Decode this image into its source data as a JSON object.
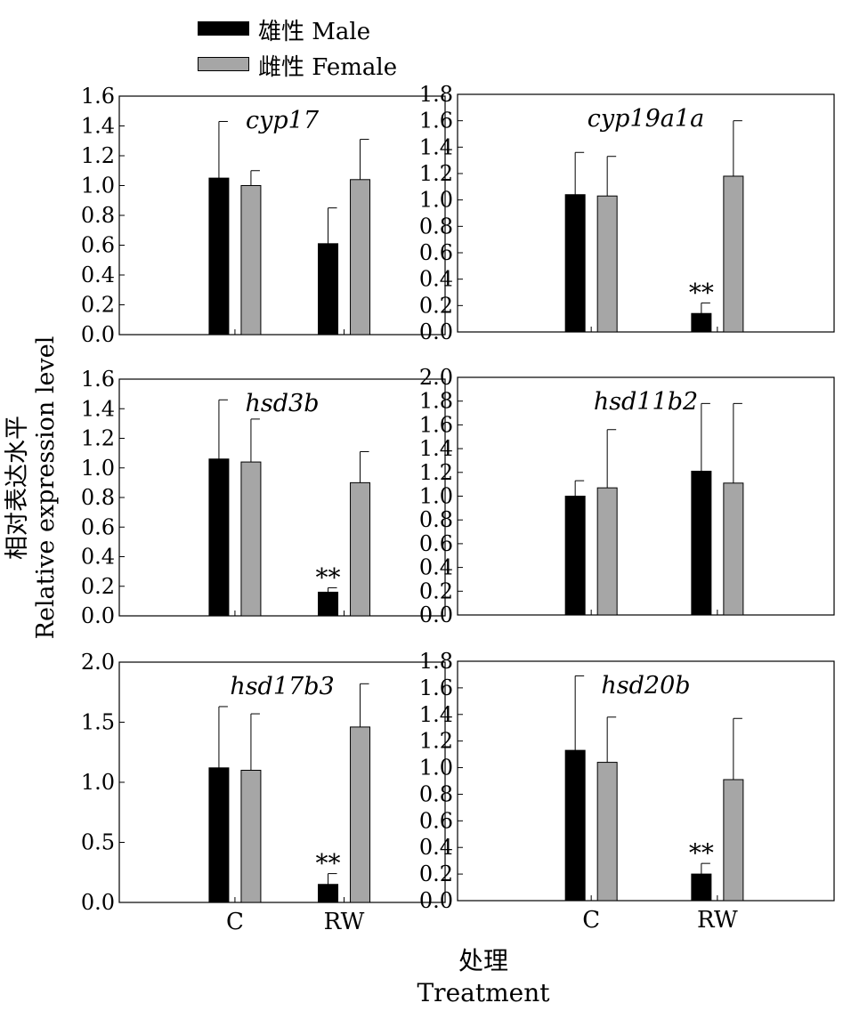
{
  "legend": [
    {
      "label": "雄性 Male",
      "color": "#000000"
    },
    {
      "label": "雌性 Female",
      "color": "#a6a6a6"
    }
  ],
  "y_axis_label": {
    "zh": "相对表达水平",
    "en": "Relative expression level"
  },
  "x_axis_label": {
    "zh": "处理",
    "en": "Treatment"
  },
  "chart_data": [
    {
      "type": "bar",
      "title": "cyp17",
      "categories": [
        "C",
        "RW"
      ],
      "ylim": [
        0,
        1.6
      ],
      "yticks": [
        "0.0",
        "0.2",
        "0.4",
        "0.6",
        "0.8",
        "1.0",
        "1.2",
        "1.4",
        "1.6"
      ],
      "series": [
        {
          "name": "雄性 Male",
          "values": [
            1.05,
            0.61
          ],
          "errors": [
            0.38,
            0.24
          ]
        },
        {
          "name": "雌性 Female",
          "values": [
            1.0,
            1.04
          ],
          "errors": [
            0.1,
            0.27
          ]
        }
      ],
      "annotations": []
    },
    {
      "type": "bar",
      "title": "cyp19a1a",
      "categories": [
        "C",
        "RW"
      ],
      "ylim": [
        0,
        1.8
      ],
      "yticks": [
        "0.0",
        "0.2",
        "0.4",
        "0.6",
        "0.8",
        "1.0",
        "1.2",
        "1.4",
        "1.6",
        "1.8"
      ],
      "series": [
        {
          "name": "雄性 Male",
          "values": [
            1.04,
            0.14
          ],
          "errors": [
            0.32,
            0.08
          ]
        },
        {
          "name": "雌性 Female",
          "values": [
            1.03,
            1.18
          ],
          "errors": [
            0.3,
            0.42
          ]
        }
      ],
      "annotations": [
        {
          "category": "RW",
          "series": 0,
          "text": "**"
        }
      ]
    },
    {
      "type": "bar",
      "title": "hsd3b",
      "categories": [
        "C",
        "RW"
      ],
      "ylim": [
        0,
        1.6
      ],
      "yticks": [
        "0.0",
        "0.2",
        "0.4",
        "0.6",
        "0.8",
        "1.0",
        "1.2",
        "1.4",
        "1.6"
      ],
      "series": [
        {
          "name": "雄性 Male",
          "values": [
            1.06,
            0.16
          ],
          "errors": [
            0.4,
            0.03
          ]
        },
        {
          "name": "雌性 Female",
          "values": [
            1.04,
            0.9
          ],
          "errors": [
            0.29,
            0.21
          ]
        }
      ],
      "annotations": [
        {
          "category": "RW",
          "series": 0,
          "text": "**"
        }
      ]
    },
    {
      "type": "bar",
      "title": "hsd11b2",
      "categories": [
        "C",
        "RW"
      ],
      "ylim": [
        0,
        2.0
      ],
      "yticks": [
        "0.0",
        "0.2",
        "0.4",
        "0.6",
        "0.8",
        "1.0",
        "1.2",
        "1.4",
        "1.6",
        "1.8",
        "2.0"
      ],
      "series": [
        {
          "name": "雄性 Male",
          "values": [
            1.0,
            1.21
          ],
          "errors": [
            0.13,
            0.57
          ]
        },
        {
          "name": "雌性 Female",
          "values": [
            1.07,
            1.11
          ],
          "errors": [
            0.49,
            0.67
          ]
        }
      ],
      "annotations": []
    },
    {
      "type": "bar",
      "title": "hsd17b3",
      "categories": [
        "C",
        "RW"
      ],
      "ylim": [
        0,
        2.0
      ],
      "yticks": [
        "0.0",
        "0.5",
        "1.0",
        "1.5",
        "2.0"
      ],
      "series": [
        {
          "name": "雄性 Male",
          "values": [
            1.12,
            0.15
          ],
          "errors": [
            0.51,
            0.09
          ]
        },
        {
          "name": "雌性 Female",
          "values": [
            1.1,
            1.46
          ],
          "errors": [
            0.47,
            0.36
          ]
        }
      ],
      "annotations": [
        {
          "category": "RW",
          "series": 0,
          "text": "**"
        }
      ]
    },
    {
      "type": "bar",
      "title": "hsd20b",
      "categories": [
        "C",
        "RW"
      ],
      "ylim": [
        0,
        1.8
      ],
      "yticks": [
        "0.0",
        "0.2",
        "0.4",
        "0.6",
        "0.8",
        "1.0",
        "1.2",
        "1.4",
        "1.6",
        "1.8"
      ],
      "series": [
        {
          "name": "雄性 Male",
          "values": [
            1.13,
            0.2
          ],
          "errors": [
            0.56,
            0.08
          ]
        },
        {
          "name": "雌性 Female",
          "values": [
            1.04,
            0.91
          ],
          "errors": [
            0.34,
            0.46
          ]
        }
      ],
      "annotations": [
        {
          "category": "RW",
          "series": 0,
          "text": "**"
        }
      ]
    }
  ]
}
